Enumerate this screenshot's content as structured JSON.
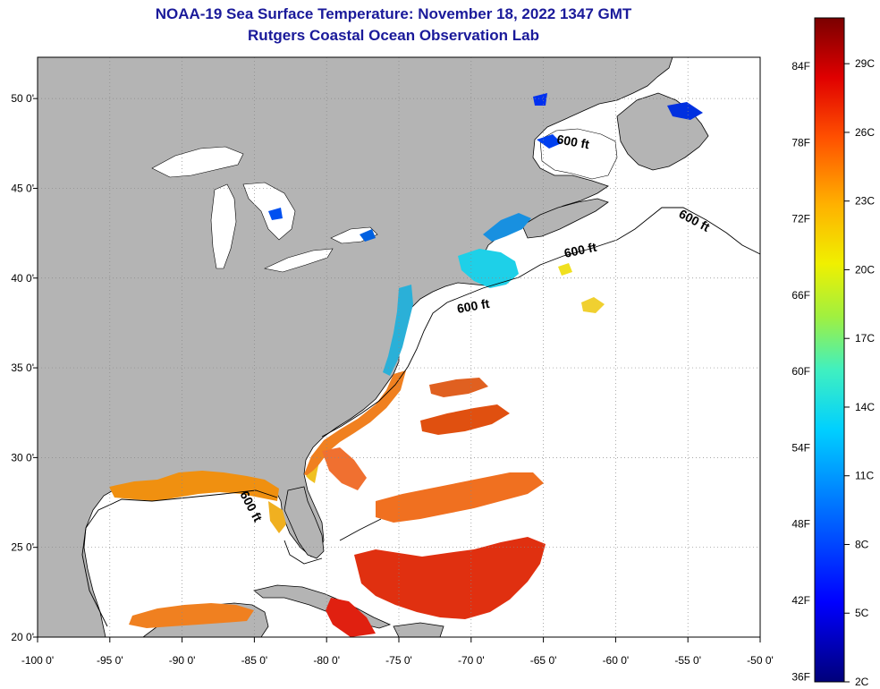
{
  "title": {
    "line1": "NOAA-19 Sea Surface Temperature:  November 18, 2022 1347 GMT",
    "line2": "Rutgers Coastal Ocean Observation Lab"
  },
  "map": {
    "lon_range": [
      -100,
      -50
    ],
    "lat_range": [
      20,
      52.3
    ],
    "lon_ticks": [
      {
        "value": -100,
        "label": "-100 0'"
      },
      {
        "value": -95,
        "label": "-95 0'"
      },
      {
        "value": -90,
        "label": "-90 0'"
      },
      {
        "value": -85,
        "label": "-85 0'"
      },
      {
        "value": -80,
        "label": "-80 0'"
      },
      {
        "value": -75,
        "label": "-75 0'"
      },
      {
        "value": -70,
        "label": "-70 0'"
      },
      {
        "value": -65,
        "label": "-65 0'"
      },
      {
        "value": -60,
        "label": "-60 0'"
      },
      {
        "value": -55,
        "label": "-55 0'"
      },
      {
        "value": -50,
        "label": "-50 0'"
      }
    ],
    "lat_ticks": [
      {
        "value": 20,
        "label": "20 0'"
      },
      {
        "value": 25,
        "label": "25 0'"
      },
      {
        "value": 30,
        "label": "30 0'"
      },
      {
        "value": 35,
        "label": "35 0'"
      },
      {
        "value": 40,
        "label": "40 0'"
      },
      {
        "value": 45,
        "label": "45 0'"
      },
      {
        "value": 50,
        "label": "50 0'"
      }
    ],
    "contour_labels": [
      "600 ft",
      "600 ft",
      "600 ft",
      "600 ft",
      "600 ft"
    ],
    "colors": {
      "land": "#b4b4b4",
      "lakes": "#ffffff",
      "ocean_no_data": "#ffffff",
      "grid": "#888888"
    }
  },
  "colorbar": {
    "fahrenheit_labels": [
      "84F",
      "78F",
      "72F",
      "66F",
      "60F",
      "54F",
      "48F",
      "42F",
      "36F"
    ],
    "celsius_labels": [
      "29C",
      "26C",
      "23C",
      "20C",
      "17C",
      "14C",
      "11C",
      "8C",
      "5C",
      "2C"
    ],
    "range_celsius": [
      2,
      31
    ],
    "colors": [
      "#00007a",
      "#0000ff",
      "#0070ff",
      "#00d0ff",
      "#40f0c0",
      "#a0f040",
      "#f0f000",
      "#ffb000",
      "#ff5000",
      "#e00000",
      "#7a0000"
    ]
  }
}
